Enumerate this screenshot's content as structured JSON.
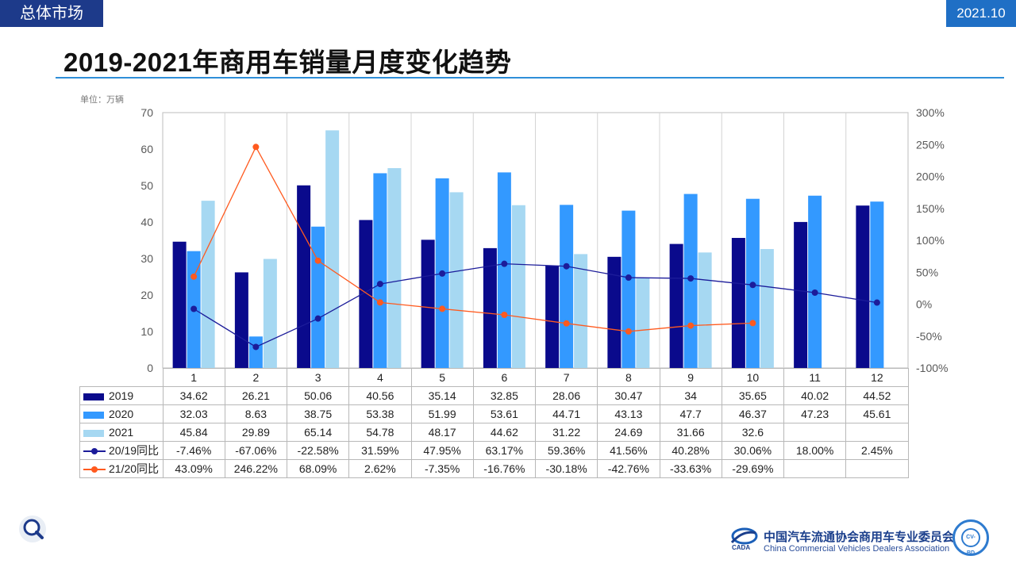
{
  "header": {
    "section_tag": "总体市场",
    "date": "2021.10"
  },
  "page_title": "2019-2021年商用车销量月度变化趋势",
  "unit_label": "单位：万辆",
  "colors": {
    "s2019": "#0a0a8c",
    "s2020": "#3399ff",
    "s2021": "#a6d8f2",
    "yoy2019": "#1c1c9a",
    "yoy2021": "#ff5a1f"
  },
  "chart_data": {
    "type": "bar",
    "categories": [
      "1",
      "2",
      "3",
      "4",
      "5",
      "6",
      "7",
      "8",
      "9",
      "10",
      "11",
      "12"
    ],
    "ylabel": "",
    "ylim": [
      0,
      70
    ],
    "yticks": [
      "0",
      "10",
      "20",
      "30",
      "40",
      "50",
      "60",
      "70"
    ],
    "y2lim": [
      -100,
      300
    ],
    "y2ticks": [
      "-100%",
      "-50%",
      "0%",
      "50%",
      "100%",
      "150%",
      "200%",
      "250%",
      "300%"
    ],
    "grid": false,
    "series": [
      {
        "name": "2019",
        "kind": "bar",
        "values": [
          34.62,
          26.21,
          50.06,
          40.56,
          35.14,
          32.85,
          28.06,
          30.47,
          34,
          35.65,
          40.02,
          44.52
        ],
        "labels": [
          "34.62",
          "26.21",
          "50.06",
          "40.56",
          "35.14",
          "32.85",
          "28.06",
          "30.47",
          "34",
          "35.65",
          "40.02",
          "44.52"
        ]
      },
      {
        "name": "2020",
        "kind": "bar",
        "values": [
          32.03,
          8.63,
          38.75,
          53.38,
          51.99,
          53.61,
          44.71,
          43.13,
          47.7,
          46.37,
          47.23,
          45.61
        ],
        "labels": [
          "32.03",
          "8.63",
          "38.75",
          "53.38",
          "51.99",
          "53.61",
          "44.71",
          "43.13",
          "47.7",
          "46.37",
          "47.23",
          "45.61"
        ]
      },
      {
        "name": "2021",
        "kind": "bar",
        "values": [
          45.84,
          29.89,
          65.14,
          54.78,
          48.17,
          44.62,
          31.22,
          24.69,
          31.66,
          32.6,
          null,
          null
        ],
        "labels": [
          "45.84",
          "29.89",
          "65.14",
          "54.78",
          "48.17",
          "44.62",
          "31.22",
          "24.69",
          "31.66",
          "32.6",
          "",
          ""
        ]
      },
      {
        "name": "20/19同比",
        "kind": "line",
        "values": [
          -7.46,
          -67.06,
          -22.58,
          31.59,
          47.95,
          63.17,
          59.36,
          41.56,
          40.28,
          30.06,
          18.0,
          2.45
        ],
        "labels": [
          "-7.46%",
          "-67.06%",
          "-22.58%",
          "31.59%",
          "47.95%",
          "63.17%",
          "59.36%",
          "41.56%",
          "40.28%",
          "30.06%",
          "18.00%",
          "2.45%"
        ]
      },
      {
        "name": "21/20同比",
        "kind": "line",
        "values": [
          43.09,
          246.22,
          68.09,
          2.62,
          -7.35,
          -16.76,
          -30.18,
          -42.76,
          -33.63,
          -29.69,
          null,
          null
        ],
        "labels": [
          "43.09%",
          "246.22%",
          "68.09%",
          "2.62%",
          "-7.35%",
          "-16.76%",
          "-30.18%",
          "-42.76%",
          "-33.63%",
          "-29.69%",
          "",
          ""
        ]
      }
    ]
  },
  "footer": {
    "org_cn": "中国汽车流通协会商用车专业委员会",
    "org_en": "China Commercial Vehicles Dealers Association",
    "logo_text": "CADA",
    "seal_text": "CV-BD"
  }
}
